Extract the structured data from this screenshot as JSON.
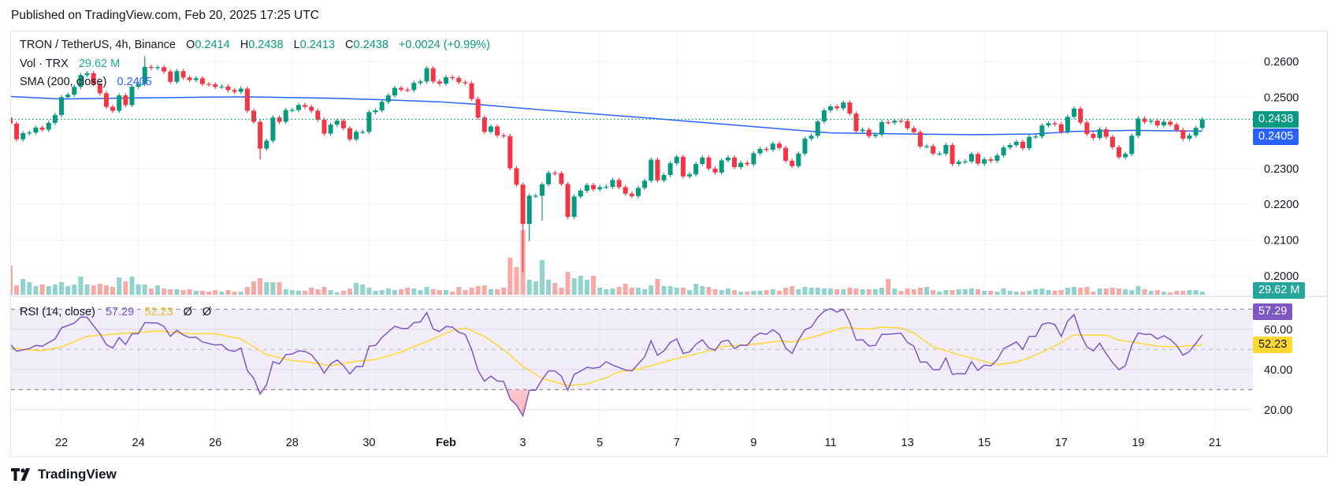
{
  "header": {
    "published": "Published on TradingView.com, Feb 20, 2025 17:25 UTC"
  },
  "legend": {
    "symbol": "TRON / TetherUS, 4h, Binance",
    "o_label": "O",
    "o": "0.2414",
    "h_label": "H",
    "h": "0.2438",
    "l_label": "L",
    "l": "0.2413",
    "c_label": "C",
    "c": "0.2438",
    "change": "+0.0024 (+0.99%)",
    "vol_label": "Vol · TRX",
    "vol_value": "29.62 M",
    "sma_label": "SMA (200, close)",
    "sma_value": "0.2405",
    "rsi_label": "RSI (14, close)",
    "rsi_value": "57.29",
    "rsi_ma_value": "52.23",
    "rsi_extra1": "Ø",
    "rsi_extra2": "Ø"
  },
  "price_axis": {
    "ticks": [
      "0.2600",
      "0.2500",
      "0.2300",
      "0.2200",
      "0.2100",
      "0.2000"
    ],
    "last_price_label": "0.2438",
    "sma_label": "0.2405",
    "volume_label": "29.62 M"
  },
  "rsi_axis": {
    "ticks": [
      "60.00",
      "40.00",
      "20.00"
    ],
    "rsi_label": "57.29",
    "ma_label": "52.23",
    "upper_band": 70,
    "middle": 50,
    "lower_band": 30
  },
  "x_axis": {
    "ticks": [
      {
        "label": "22",
        "date": "2025-01-22"
      },
      {
        "label": "24",
        "date": "2025-01-24"
      },
      {
        "label": "26",
        "date": "2025-01-26"
      },
      {
        "label": "28",
        "date": "2025-01-28"
      },
      {
        "label": "30",
        "date": "2025-01-30"
      },
      {
        "label": "Feb",
        "date": "2025-02-01",
        "bold": true
      },
      {
        "label": "3",
        "date": "2025-02-03"
      },
      {
        "label": "5",
        "date": "2025-02-05"
      },
      {
        "label": "7",
        "date": "2025-02-07"
      },
      {
        "label": "9",
        "date": "2025-02-09"
      },
      {
        "label": "11",
        "date": "2025-02-11"
      },
      {
        "label": "13",
        "date": "2025-02-13"
      },
      {
        "label": "15",
        "date": "2025-02-15"
      },
      {
        "label": "17",
        "date": "2025-02-17"
      },
      {
        "label": "19",
        "date": "2025-02-19"
      },
      {
        "label": "21",
        "date": "2025-02-21"
      }
    ]
  },
  "brand": {
    "logo_text": "TradingView"
  },
  "colors": {
    "up": "#089981",
    "down": "#f23645",
    "vol_up": "#92d2cc",
    "vol_down": "#f7a9a7",
    "sma": "#2962ff",
    "rsi": "#7e57c2",
    "rsi_ma": "#fdd835",
    "grid": "#f0f3fa",
    "volume_tag": "#26a69a"
  },
  "chart_data": {
    "type": "candlestick",
    "symbol": "TRON / TetherUS",
    "interval_hours": 4,
    "first_candle_time": "2025-01-20T16:00:00Z",
    "first_open": 0.2443,
    "ylim": [
      0.1985,
      0.2645
    ],
    "close": [
      0.2426,
      0.2382,
      0.2399,
      0.2401,
      0.2415,
      0.2409,
      0.2428,
      0.245,
      0.25,
      0.2507,
      0.2529,
      0.2562,
      0.2567,
      0.2537,
      0.2511,
      0.2473,
      0.2462,
      0.2505,
      0.2478,
      0.2529,
      0.2537,
      0.2585,
      0.2582,
      0.2584,
      0.2572,
      0.2543,
      0.2573,
      0.2555,
      0.2548,
      0.2553,
      0.2537,
      0.2536,
      0.2529,
      0.253,
      0.252,
      0.2515,
      0.2524,
      0.2462,
      0.2431,
      0.2356,
      0.2378,
      0.2443,
      0.2431,
      0.2464,
      0.2464,
      0.2478,
      0.2473,
      0.2462,
      0.2437,
      0.2398,
      0.2423,
      0.2434,
      0.2413,
      0.2382,
      0.2403,
      0.2403,
      0.2458,
      0.2463,
      0.2487,
      0.2505,
      0.2526,
      0.2521,
      0.252,
      0.254,
      0.2544,
      0.2581,
      0.2544,
      0.2538,
      0.2556,
      0.2554,
      0.2542,
      0.2539,
      0.2495,
      0.2443,
      0.2403,
      0.2418,
      0.2393,
      0.2391,
      0.2301,
      0.2255,
      0.2145,
      0.2224,
      0.2224,
      0.2256,
      0.2288,
      0.2287,
      0.2257,
      0.2165,
      0.2222,
      0.2238,
      0.2254,
      0.2242,
      0.2248,
      0.2249,
      0.2268,
      0.2248,
      0.223,
      0.2223,
      0.2246,
      0.2266,
      0.2325,
      0.2267,
      0.2282,
      0.2315,
      0.2333,
      0.2278,
      0.2284,
      0.2313,
      0.2331,
      0.23,
      0.2289,
      0.2323,
      0.2331,
      0.2304,
      0.2316,
      0.2312,
      0.2343,
      0.2355,
      0.2353,
      0.237,
      0.2358,
      0.2322,
      0.2307,
      0.2342,
      0.2384,
      0.2392,
      0.2432,
      0.2463,
      0.2474,
      0.2469,
      0.2485,
      0.2454,
      0.2405,
      0.2409,
      0.2391,
      0.2395,
      0.243,
      0.2429,
      0.2434,
      0.2433,
      0.2413,
      0.2402,
      0.2362,
      0.2363,
      0.2342,
      0.2342,
      0.2366,
      0.2313,
      0.2319,
      0.232,
      0.2341,
      0.2314,
      0.2326,
      0.2322,
      0.2337,
      0.2359,
      0.2366,
      0.2375,
      0.2357,
      0.2389,
      0.239,
      0.2421,
      0.2427,
      0.2424,
      0.2403,
      0.2445,
      0.2468,
      0.2429,
      0.2397,
      0.2386,
      0.241,
      0.2389,
      0.236,
      0.2332,
      0.2341,
      0.2392,
      0.244,
      0.2431,
      0.2434,
      0.2421,
      0.2431,
      0.2423,
      0.2408,
      0.2384,
      0.2393,
      0.2414,
      0.2438
    ],
    "extreme_lows": {
      "39": 0.2325,
      "80": 0.201,
      "81": 0.2097,
      "83": 0.2154
    },
    "extreme_highs": {
      "21": 0.2615
    },
    "volume_m": [
      278,
      90,
      150,
      120,
      83,
      98,
      83,
      98,
      120,
      83,
      98,
      173,
      98,
      90,
      105,
      90,
      75,
      165,
      128,
      173,
      98,
      98,
      60,
      90,
      60,
      53,
      53,
      45,
      53,
      38,
      38,
      30,
      45,
      30,
      45,
      30,
      30,
      75,
      128,
      158,
      120,
      120,
      120,
      53,
      45,
      38,
      38,
      68,
      53,
      75,
      45,
      23,
      38,
      60,
      113,
      98,
      68,
      38,
      45,
      60,
      45,
      53,
      68,
      60,
      45,
      75,
      53,
      45,
      45,
      30,
      75,
      45,
      68,
      83,
      90,
      53,
      53,
      68,
      353,
      263,
      615,
      143,
      128,
      330,
      143,
      113,
      68,
      218,
      158,
      180,
      143,
      180,
      68,
      53,
      60,
      75,
      105,
      68,
      68,
      53,
      90,
      150,
      83,
      83,
      68,
      68,
      45,
      105,
      83,
      75,
      53,
      45,
      60,
      45,
      30,
      30,
      38,
      38,
      45,
      53,
      38,
      68,
      83,
      53,
      75,
      68,
      68,
      60,
      60,
      53,
      53,
      68,
      60,
      53,
      53,
      53,
      68,
      150,
      60,
      38,
      60,
      53,
      68,
      75,
      45,
      30,
      45,
      45,
      53,
      53,
      60,
      53,
      38,
      38,
      30,
      60,
      38,
      30,
      30,
      38,
      53,
      60,
      45,
      38,
      45,
      68,
      75,
      68,
      75,
      30,
      60,
      60,
      68,
      60,
      53,
      45,
      83,
      53,
      38,
      45,
      30,
      23,
      38,
      38,
      45,
      45,
      29.62
    ],
    "sma200": [
      [
        0,
        0.2502
      ],
      [
        8,
        0.2495
      ],
      [
        20,
        0.2498
      ],
      [
        30,
        0.25
      ],
      [
        37,
        0.2501
      ],
      [
        50,
        0.2497
      ],
      [
        58,
        0.2493
      ],
      [
        67,
        0.2487
      ],
      [
        72,
        0.2481
      ],
      [
        84,
        0.2463
      ],
      [
        100,
        0.2441
      ],
      [
        115,
        0.2419
      ],
      [
        128,
        0.24
      ],
      [
        140,
        0.2397
      ],
      [
        150,
        0.2395
      ],
      [
        160,
        0.2397
      ],
      [
        166,
        0.2404
      ],
      [
        175,
        0.2407
      ],
      [
        186,
        0.2405
      ]
    ],
    "rsi14": [
      [
        0,
        52.6
      ],
      [
        1,
        49.1
      ],
      [
        3,
        50.4
      ],
      [
        4,
        52.0
      ],
      [
        5,
        51.6
      ],
      [
        7,
        55.2
      ],
      [
        8,
        60.7
      ],
      [
        10,
        63.1
      ],
      [
        11,
        66.1
      ],
      [
        12,
        66.0
      ],
      [
        13,
        61.8
      ],
      [
        14,
        57.8
      ],
      [
        15,
        52.4
      ],
      [
        16,
        50.7
      ],
      [
        17,
        55.9
      ],
      [
        18,
        52.4
      ],
      [
        19,
        57.8
      ],
      [
        20,
        57.8
      ],
      [
        21,
        63.3
      ],
      [
        23,
        63.1
      ],
      [
        24,
        61.4
      ],
      [
        25,
        56.5
      ],
      [
        26,
        59.5
      ],
      [
        27,
        57.2
      ],
      [
        28,
        55.9
      ],
      [
        29,
        56.1
      ],
      [
        30,
        53.7
      ],
      [
        32,
        52.2
      ],
      [
        33,
        52.4
      ],
      [
        34,
        49.7
      ],
      [
        35,
        49.0
      ],
      [
        36,
        50.7
      ],
      [
        37,
        39.5
      ],
      [
        38,
        35.6
      ],
      [
        39,
        27.8
      ],
      [
        40,
        32.4
      ],
      [
        41,
        43.9
      ],
      [
        42,
        42.8
      ],
      [
        43,
        47.4
      ],
      [
        44,
        47.7
      ],
      [
        45,
        49.3
      ],
      [
        46,
        49.0
      ],
      [
        47,
        47.4
      ],
      [
        48,
        43.5
      ],
      [
        49,
        38.2
      ],
      [
        50,
        42.8
      ],
      [
        51,
        44.8
      ],
      [
        52,
        41.9
      ],
      [
        53,
        37.8
      ],
      [
        54,
        41.5
      ],
      [
        55,
        41.5
      ],
      [
        56,
        51.6
      ],
      [
        57,
        52.0
      ],
      [
        58,
        55.9
      ],
      [
        59,
        58.8
      ],
      [
        60,
        61.5
      ],
      [
        61,
        60.5
      ],
      [
        62,
        60.3
      ],
      [
        63,
        63.3
      ],
      [
        64,
        63.7
      ],
      [
        65,
        68.3
      ],
      [
        66,
        60.2
      ],
      [
        67,
        58.9
      ],
      [
        68,
        61.4
      ],
      [
        69,
        61.1
      ],
      [
        70,
        58.5
      ],
      [
        71,
        57.5
      ],
      [
        72,
        50.0
      ],
      [
        73,
        39.5
      ],
      [
        74,
        34.2
      ],
      [
        75,
        36.7
      ],
      [
        76,
        34.3
      ],
      [
        77,
        34.1
      ],
      [
        78,
        25.4
      ],
      [
        79,
        22.3
      ],
      [
        80,
        16.9
      ],
      [
        81,
        29.7
      ],
      [
        82,
        29.7
      ],
      [
        83,
        35.0
      ],
      [
        84,
        39.3
      ],
      [
        85,
        39.3
      ],
      [
        86,
        36.7
      ],
      [
        87,
        29.7
      ],
      [
        88,
        37.6
      ],
      [
        89,
        39.2
      ],
      [
        90,
        41.1
      ],
      [
        91,
        40.6
      ],
      [
        92,
        41.2
      ],
      [
        93,
        43.9
      ],
      [
        94,
        42.2
      ],
      [
        96,
        39.8
      ],
      [
        97,
        39.3
      ],
      [
        98,
        42.8
      ],
      [
        99,
        46.3
      ],
      [
        100,
        54.3
      ],
      [
        101,
        47.1
      ],
      [
        102,
        49.3
      ],
      [
        103,
        53.5
      ],
      [
        104,
        55.2
      ],
      [
        105,
        48.0
      ],
      [
        106,
        48.7
      ],
      [
        107,
        52.6
      ],
      [
        108,
        54.8
      ],
      [
        109,
        50.7
      ],
      [
        110,
        49.6
      ],
      [
        111,
        53.9
      ],
      [
        112,
        54.6
      ],
      [
        113,
        50.4
      ],
      [
        114,
        52.2
      ],
      [
        115,
        52.0
      ],
      [
        116,
        56.1
      ],
      [
        117,
        58.1
      ],
      [
        118,
        57.5
      ],
      [
        119,
        59.8
      ],
      [
        120,
        57.5
      ],
      [
        121,
        50.7
      ],
      [
        122,
        48.0
      ],
      [
        123,
        54.6
      ],
      [
        124,
        59.8
      ],
      [
        125,
        61.1
      ],
      [
        126,
        65.9
      ],
      [
        127,
        69.0
      ],
      [
        128,
        70.3
      ],
      [
        129,
        68.6
      ],
      [
        130,
        70.0
      ],
      [
        131,
        63.5
      ],
      [
        132,
        54.6
      ],
      [
        133,
        54.8
      ],
      [
        134,
        51.7
      ],
      [
        135,
        52.0
      ],
      [
        136,
        57.5
      ],
      [
        137,
        57.5
      ],
      [
        139,
        58.1
      ],
      [
        140,
        53.5
      ],
      [
        141,
        51.6
      ],
      [
        142,
        43.7
      ],
      [
        143,
        43.7
      ],
      [
        144,
        39.9
      ],
      [
        145,
        39.9
      ],
      [
        146,
        45.8
      ],
      [
        147,
        37.6
      ],
      [
        148,
        38.0
      ],
      [
        149,
        37.8
      ],
      [
        150,
        43.9
      ],
      [
        151,
        39.5
      ],
      [
        152,
        42.2
      ],
      [
        153,
        41.8
      ],
      [
        154,
        44.8
      ],
      [
        155,
        50.4
      ],
      [
        156,
        52.0
      ],
      [
        157,
        53.7
      ],
      [
        158,
        50.0
      ],
      [
        159,
        56.5
      ],
      [
        160,
        56.5
      ],
      [
        161,
        62.4
      ],
      [
        162,
        63.3
      ],
      [
        163,
        62.4
      ],
      [
        164,
        56.5
      ],
      [
        165,
        64.1
      ],
      [
        166,
        67.3
      ],
      [
        167,
        57.8
      ],
      [
        168,
        51.3
      ],
      [
        169,
        49.3
      ],
      [
        170,
        53.1
      ],
      [
        171,
        48.0
      ],
      [
        172,
        43.5
      ],
      [
        173,
        39.9
      ],
      [
        174,
        41.9
      ],
      [
        175,
        52.0
      ],
      [
        176,
        58.2
      ],
      [
        177,
        57.5
      ],
      [
        178,
        57.5
      ],
      [
        179,
        55.2
      ],
      [
        180,
        56.8
      ],
      [
        181,
        55.0
      ],
      [
        182,
        52.0
      ],
      [
        183,
        47.1
      ],
      [
        184,
        49.0
      ],
      [
        185,
        53.0
      ],
      [
        186,
        57.29
      ]
    ],
    "rsi_ma": [
      [
        0,
        50.7
      ],
      [
        5,
        49.3
      ],
      [
        8,
        51.3
      ],
      [
        12,
        56.5
      ],
      [
        17,
        57.8
      ],
      [
        23,
        59.2
      ],
      [
        28,
        57.8
      ],
      [
        32,
        57.8
      ],
      [
        36,
        55.2
      ],
      [
        40,
        47.4
      ],
      [
        44,
        44.5
      ],
      [
        47,
        43.5
      ],
      [
        50,
        41.9
      ],
      [
        54,
        44.1
      ],
      [
        57,
        45.0
      ],
      [
        61,
        48.7
      ],
      [
        65,
        53.9
      ],
      [
        69,
        59.4
      ],
      [
        71,
        60.7
      ],
      [
        74,
        56.5
      ],
      [
        77,
        50.0
      ],
      [
        80,
        41.5
      ],
      [
        83,
        35.6
      ],
      [
        87,
        32.0
      ],
      [
        90,
        32.8
      ],
      [
        93,
        36.0
      ],
      [
        95,
        38.9
      ],
      [
        98,
        40.2
      ],
      [
        104,
        45.4
      ],
      [
        109,
        49.3
      ],
      [
        111,
        51.3
      ],
      [
        117,
        52.9
      ],
      [
        120,
        54.2
      ],
      [
        122,
        53.7
      ],
      [
        125,
        55.9
      ],
      [
        130,
        60.9
      ],
      [
        134,
        60.1
      ],
      [
        136,
        61.1
      ],
      [
        139,
        60.7
      ],
      [
        141,
        58.1
      ],
      [
        144,
        51.3
      ],
      [
        148,
        47.4
      ],
      [
        154,
        42.4
      ],
      [
        157,
        43.7
      ],
      [
        159,
        45.8
      ],
      [
        163,
        51.6
      ],
      [
        166,
        57.2
      ],
      [
        171,
        57.1
      ],
      [
        173,
        54.6
      ],
      [
        176,
        53.3
      ],
      [
        179,
        51.6
      ],
      [
        182,
        51.3
      ],
      [
        186,
        52.23
      ]
    ],
    "rsi_ylim": [
      14,
      79
    ]
  }
}
